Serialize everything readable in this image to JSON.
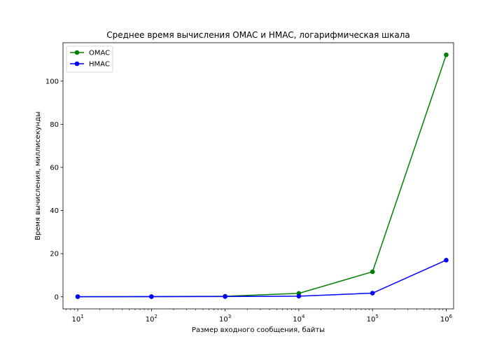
{
  "chart_data": {
    "type": "line",
    "title": "Среднее время вычисления OMAC и HMAC, логарифмическая шкала",
    "xlabel": "Размер входного сообщения, байты",
    "ylabel": "Время вычисления, миллисекунды",
    "xscale": "log",
    "x": [
      10,
      100,
      1000,
      10000,
      100000,
      1000000
    ],
    "x_tick_labels": [
      {
        "base": "10",
        "exp": "1"
      },
      {
        "base": "10",
        "exp": "2"
      },
      {
        "base": "10",
        "exp": "3"
      },
      {
        "base": "10",
        "exp": "4"
      },
      {
        "base": "10",
        "exp": "5"
      },
      {
        "base": "10",
        "exp": "6"
      }
    ],
    "y_ticks": [
      0,
      20,
      40,
      60,
      80,
      100
    ],
    "xlim_log10": [
      0.8,
      6.1
    ],
    "ylim": [
      -5.6,
      117.8
    ],
    "grid": false,
    "legend": "top-left",
    "series": [
      {
        "name": "OMAC",
        "color": "#008000",
        "values": [
          0.05,
          0.1,
          0.25,
          1.6,
          11.6,
          112.2
        ]
      },
      {
        "name": "HMAC",
        "color": "#0000ff",
        "values": [
          0.05,
          0.07,
          0.12,
          0.3,
          1.7,
          17.0
        ]
      }
    ]
  }
}
